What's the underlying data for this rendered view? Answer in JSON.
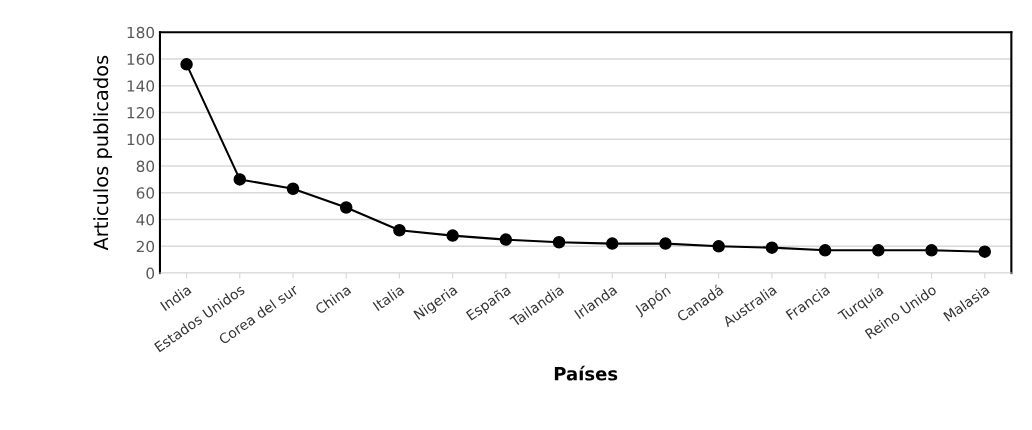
{
  "chart_data": {
    "type": "line",
    "xlabel": "Países",
    "ylabel": "Articulos publicados",
    "categories": [
      "India",
      "Estados Unidos",
      "Corea del sur",
      "China",
      "Italia",
      "Nigeria",
      "España",
      "Tailandia",
      "Irlanda",
      "Japón",
      "Canadá",
      "Australia",
      "Francia",
      "Turquía",
      "Reino Unido",
      "Malasia"
    ],
    "series": [
      {
        "color": "#000000",
        "values": [
          156,
          70,
          63,
          49,
          32,
          28,
          25,
          23,
          22,
          22,
          20,
          19,
          17,
          17,
          17,
          16
        ]
      }
    ],
    "ylim": [
      0,
      180
    ],
    "yticks": [
      0,
      20,
      40,
      60,
      80,
      100,
      120,
      140,
      160,
      180
    ],
    "grid": "y",
    "marker": "circle",
    "line_style": "solid",
    "legend": false
  }
}
